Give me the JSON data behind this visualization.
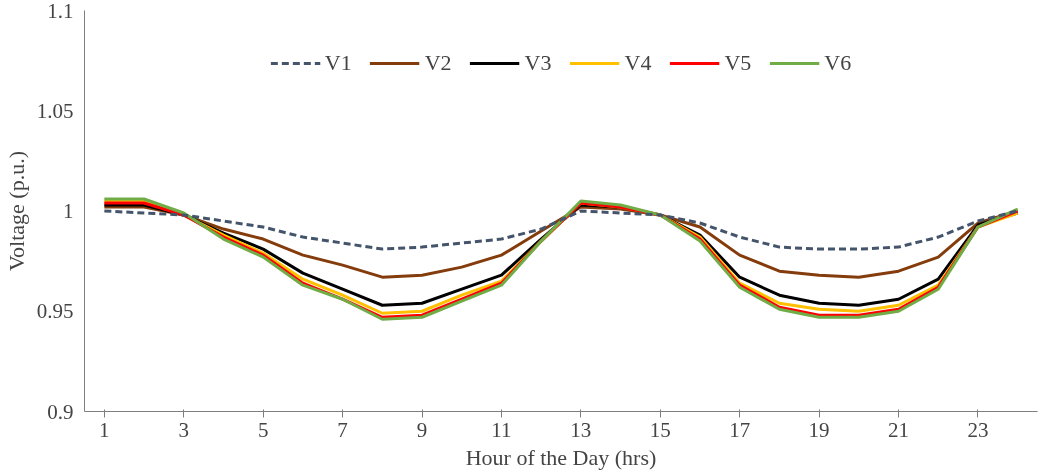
{
  "chart_data": {
    "type": "line",
    "xlabel": "Hour of the Day (hrs)",
    "ylabel": "Voltage (p.u.)",
    "x": [
      1,
      2,
      3,
      4,
      5,
      6,
      7,
      8,
      9,
      10,
      11,
      12,
      13,
      14,
      15,
      16,
      17,
      18,
      19,
      20,
      21,
      22,
      23,
      24
    ],
    "xlim": [
      0.5,
      24.5
    ],
    "xticks": [
      1,
      3,
      5,
      7,
      9,
      11,
      13,
      15,
      17,
      19,
      21,
      23
    ],
    "ylim": [
      0.9,
      1.1
    ],
    "yticks": [
      0.9,
      0.95,
      1,
      1.05,
      1.1
    ],
    "grid": false,
    "legend": "top",
    "marker": "none",
    "series": [
      {
        "name": "V1",
        "color": "#44546a",
        "line_style": "dashed",
        "values": [
          1.0,
          0.999,
          0.998,
          0.995,
          0.992,
          0.987,
          0.984,
          0.981,
          0.982,
          0.984,
          0.986,
          0.991,
          1.0,
          0.999,
          0.998,
          0.994,
          0.987,
          0.982,
          0.981,
          0.981,
          0.982,
          0.987,
          0.995,
          1.0
        ]
      },
      {
        "name": "V2",
        "color": "#843c0c",
        "values": [
          1.002,
          1.002,
          0.998,
          0.991,
          0.986,
          0.978,
          0.973,
          0.967,
          0.968,
          0.972,
          0.978,
          0.99,
          1.002,
          1.001,
          0.998,
          0.992,
          0.978,
          0.97,
          0.968,
          0.967,
          0.97,
          0.977,
          0.994,
          1.0
        ]
      },
      {
        "name": "V3",
        "color": "#000000",
        "values": [
          1.003,
          1.003,
          0.998,
          0.989,
          0.981,
          0.969,
          0.961,
          0.953,
          0.954,
          0.961,
          0.968,
          0.986,
          1.003,
          1.002,
          0.998,
          0.988,
          0.967,
          0.958,
          0.954,
          0.953,
          0.956,
          0.966,
          0.993,
          0.999
        ]
      },
      {
        "name": "V4",
        "color": "#ffc000",
        "values": [
          1.005,
          1.005,
          0.998,
          0.988,
          0.979,
          0.966,
          0.958,
          0.949,
          0.95,
          0.958,
          0.965,
          0.985,
          1.004,
          1.002,
          0.998,
          0.987,
          0.964,
          0.954,
          0.951,
          0.95,
          0.953,
          0.963,
          0.992,
          0.999
        ]
      },
      {
        "name": "V5",
        "color": "#ff0000",
        "values": [
          1.004,
          1.004,
          0.998,
          0.987,
          0.978,
          0.964,
          0.956,
          0.947,
          0.948,
          0.956,
          0.964,
          0.985,
          1.004,
          1.002,
          0.998,
          0.986,
          0.963,
          0.952,
          0.948,
          0.948,
          0.951,
          0.962,
          0.992,
          1.0
        ]
      },
      {
        "name": "V6",
        "color": "#70ad47",
        "values": [
          1.006,
          1.006,
          0.999,
          0.986,
          0.977,
          0.963,
          0.956,
          0.946,
          0.947,
          0.955,
          0.963,
          0.985,
          1.005,
          1.003,
          0.998,
          0.985,
          0.962,
          0.951,
          0.947,
          0.947,
          0.95,
          0.961,
          0.992,
          1.001
        ]
      }
    ]
  }
}
